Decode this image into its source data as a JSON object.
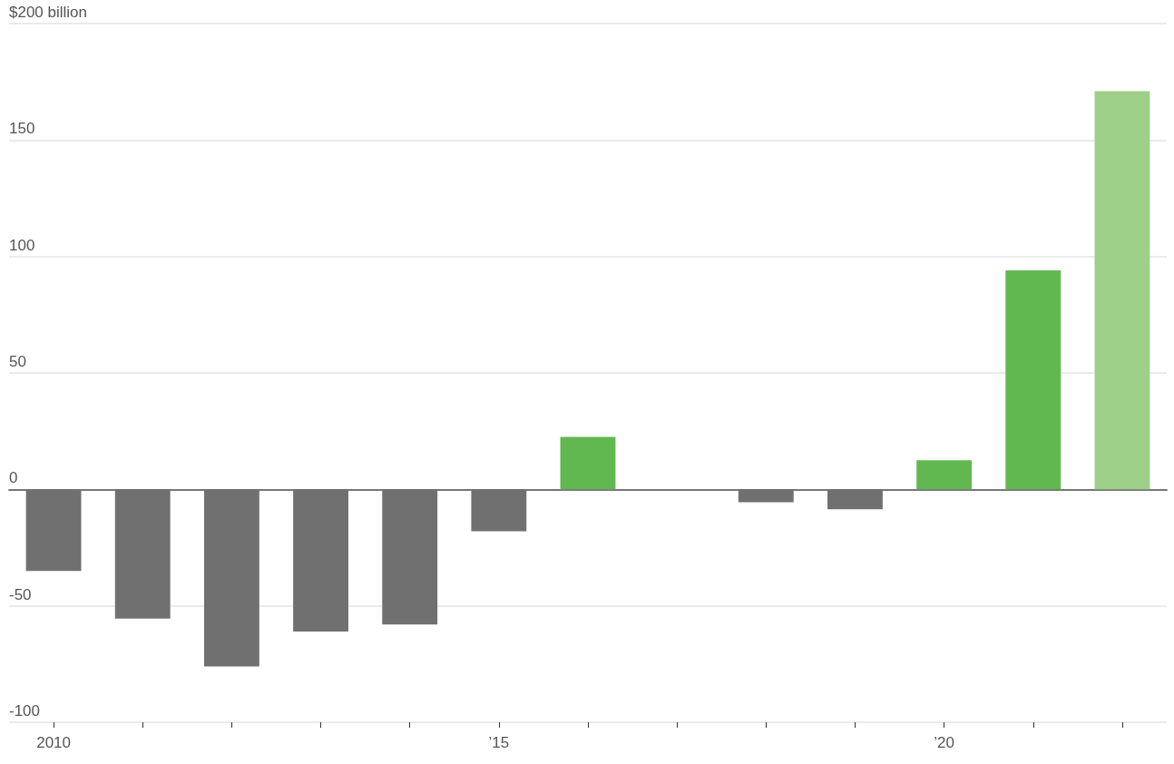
{
  "chart_data": {
    "type": "bar",
    "categories": [
      "2010",
      null,
      null,
      null,
      null,
      "’15",
      null,
      null,
      null,
      null,
      "’20",
      null,
      null
    ],
    "values": [
      -35,
      -55.5,
      -76,
      -61,
      -58,
      -18,
      22.5,
      0,
      -5.5,
      -8.5,
      12.5,
      94,
      171
    ],
    "colors": [
      "#707070",
      "#707070",
      "#707070",
      "#707070",
      "#707070",
      "#707070",
      "#62b850",
      "#707070",
      "#707070",
      "#707070",
      "#62b850",
      "#62b850",
      "#9fd08a"
    ],
    "ylim": [
      -100,
      200
    ],
    "yticks": [
      -100,
      -50,
      0,
      50,
      100,
      150,
      {
        "value": 200,
        "label": "$200 billion"
      }
    ],
    "grid": "y"
  }
}
